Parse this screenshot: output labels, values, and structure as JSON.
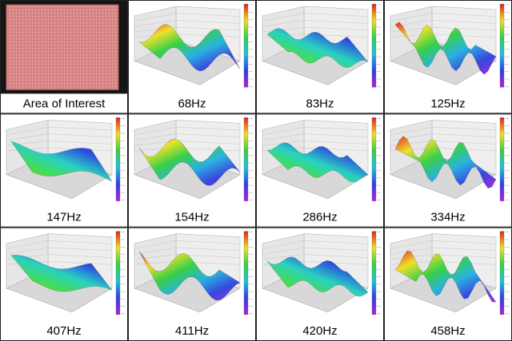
{
  "panels": [
    {
      "caption": "Area of Interest"
    },
    {
      "caption": "68Hz"
    },
    {
      "caption": "83Hz"
    },
    {
      "caption": "125Hz"
    },
    {
      "caption": "147Hz"
    },
    {
      "caption": "154Hz"
    },
    {
      "caption": "286Hz"
    },
    {
      "caption": "334Hz"
    },
    {
      "caption": "407Hz"
    },
    {
      "caption": "411Hz"
    },
    {
      "caption": "420Hz"
    },
    {
      "caption": "458Hz"
    }
  ]
}
